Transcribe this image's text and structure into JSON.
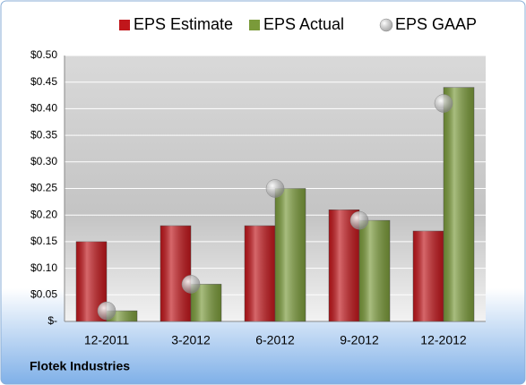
{
  "chart_data": {
    "type": "bar",
    "categories": [
      "12-2011",
      "3-2012",
      "6-2012",
      "9-2012",
      "12-2012"
    ],
    "series": [
      {
        "name": "EPS Estimate",
        "color": "#c0161b",
        "values": [
          0.15,
          0.18,
          0.18,
          0.21,
          0.17
        ]
      },
      {
        "name": "EPS Actual",
        "color": "#7a9a3a",
        "values": [
          0.02,
          0.07,
          0.25,
          0.19,
          0.44
        ]
      },
      {
        "name": "EPS GAAP",
        "color": "#a6a6a6",
        "type": "scatter",
        "values": [
          0.02,
          0.07,
          0.25,
          0.19,
          0.41
        ]
      }
    ],
    "ylim": [
      0,
      0.5
    ],
    "yticks": [
      {
        "value": 0,
        "label": "$-"
      },
      {
        "value": 0.05,
        "label": "$0.05"
      },
      {
        "value": 0.1,
        "label": "$0.10"
      },
      {
        "value": 0.15,
        "label": "$0.15"
      },
      {
        "value": 0.2,
        "label": "$0.20"
      },
      {
        "value": 0.25,
        "label": "$0.25"
      },
      {
        "value": 0.3,
        "label": "$0.30"
      },
      {
        "value": 0.35,
        "label": "$0.35"
      },
      {
        "value": 0.4,
        "label": "$0.40"
      },
      {
        "value": 0.45,
        "label": "$0.45"
      },
      {
        "value": 0.5,
        "label": "$0.50"
      }
    ],
    "grid": true,
    "legend": "top",
    "footer": "Flotek Industries"
  }
}
